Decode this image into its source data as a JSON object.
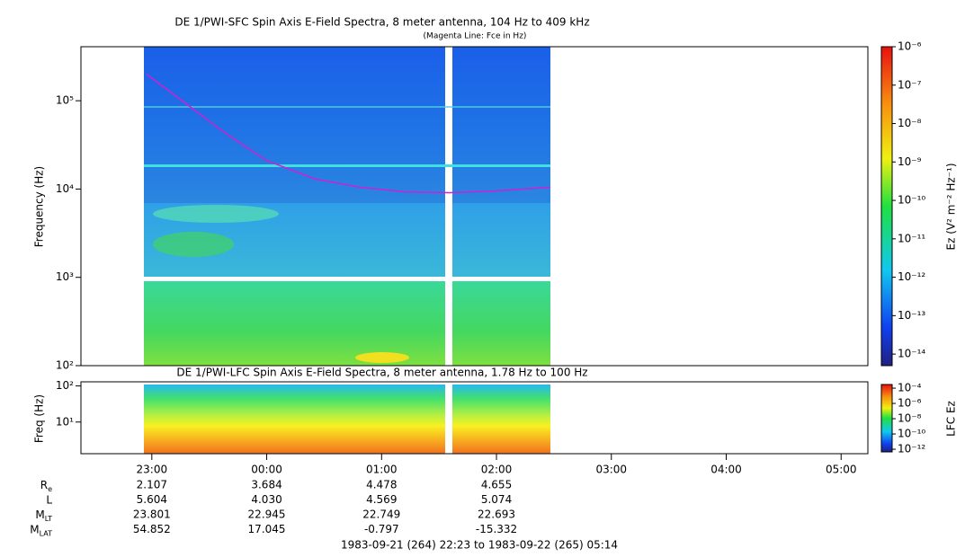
{
  "title": "DE 1/PWI-SFC  Spin Axis E-Field Spectra, 8 meter antenna, 104 Hz to 409 kHz",
  "subtitle": "(Magenta Line: Fce in Hz)",
  "chart_data": [
    {
      "type": "line",
      "ylabel": "Frequency (Hz)",
      "log": true,
      "xlim": [
        22.383,
        29.233
      ],
      "ylim": [
        100,
        409000
      ],
      "yticks": [
        {
          "value": 100,
          "label": "10²"
        },
        {
          "value": 1000,
          "label": "10³"
        },
        {
          "value": 10000,
          "label": "10⁴"
        },
        {
          "value": 100000,
          "label": "10⁵"
        }
      ],
      "x": [
        22.953,
        23.25,
        23.64,
        24.0,
        24.42,
        24.81,
        25.2,
        25.59,
        25.98,
        26.47
      ],
      "series": [
        {
          "color": "#d020d0",
          "values": [
            200000,
            103000,
            43000,
            21000,
            13000,
            10500,
            9300,
            9100,
            9500,
            10500
          ]
        }
      ],
      "colorbar": {
        "label": "Ez (V² m⁻² Hz⁻¹)",
        "lim": [
          5e-15,
          1e-06
        ],
        "ticks": [
          {
            "value": 1e-06,
            "label": "10⁻⁶"
          },
          {
            "value": 1e-07,
            "label": "10⁻⁷"
          },
          {
            "value": 1e-08,
            "label": "10⁻⁸"
          },
          {
            "value": 1e-09,
            "label": "10⁻⁹"
          },
          {
            "value": 1e-10,
            "label": "10⁻¹⁰"
          },
          {
            "value": 1e-11,
            "label": "10⁻¹¹"
          },
          {
            "value": 1e-12,
            "label": "10⁻¹²"
          },
          {
            "value": 1e-13,
            "label": "10⁻¹³"
          },
          {
            "value": 1e-14,
            "label": "10⁻¹⁴"
          }
        ]
      }
    },
    {
      "type": "spectrogram",
      "title": "DE 1/PWI-LFC  Spin Axis E-Field Spectra, 8 meter antenna, 1.78 Hz to 100 Hz",
      "ylabel": "Freq (Hz)",
      "log": true,
      "xlim": [
        22.383,
        29.233
      ],
      "ylim": [
        1.33,
        130
      ],
      "yticks": [
        {
          "value": 10,
          "label": "10¹"
        },
        {
          "value": 100,
          "label": "10²"
        }
      ],
      "xticks": [
        {
          "value": 23,
          "label": "23:00"
        },
        {
          "value": 24,
          "label": "00:00"
        },
        {
          "value": 25,
          "label": "01:00"
        },
        {
          "value": 26,
          "label": "02:00"
        },
        {
          "value": 27,
          "label": "03:00"
        },
        {
          "value": 28,
          "label": "04:00"
        },
        {
          "value": 29,
          "label": "05:00"
        }
      ],
      "colorbar": {
        "label": "LFC Ez",
        "lim": [
          4.5e-13,
          0.0003
        ],
        "ticks": [
          {
            "value": 0.0001,
            "label": "10⁻⁴"
          },
          {
            "value": 1e-06,
            "label": "10⁻⁶"
          },
          {
            "value": 1e-08,
            "label": "10⁻⁸"
          },
          {
            "value": 1e-10,
            "label": "10⁻¹⁰"
          },
          {
            "value": 1e-12,
            "label": "10⁻¹²"
          }
        ]
      }
    }
  ],
  "ephemeris": [
    {
      "label": "R",
      "sub": "e",
      "values": [
        "2.107",
        "3.684",
        "4.478",
        "4.655"
      ]
    },
    {
      "label": "L",
      "values": [
        "5.604",
        "4.030",
        "4.569",
        "5.074"
      ]
    },
    {
      "label": "M",
      "sub": "LT",
      "values": [
        "23.801",
        "22.945",
        "22.749",
        "22.693"
      ]
    },
    {
      "label": "M",
      "sub": "LAT",
      "values": [
        "54.852",
        "17.045",
        "-0.797",
        "-15.332"
      ]
    }
  ],
  "footer": "1983-09-21 (264) 22:23 to 1983-09-22 (265) 05:14"
}
